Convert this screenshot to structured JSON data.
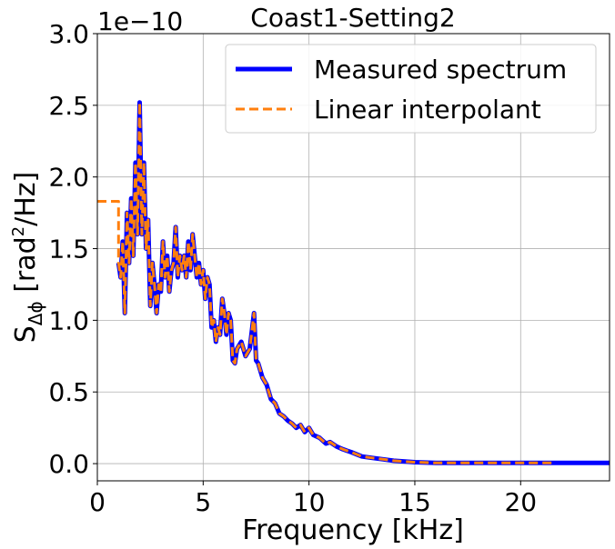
{
  "chart_data": {
    "type": "line",
    "title": "Coast1-Setting2",
    "xlabel": "Frequency [kHz]",
    "ylabel": {
      "base": "S",
      "subscript": "Δϕ",
      "mid": " [rad",
      "superscript": "2",
      "end": "/Hz]"
    },
    "offset_text": "1e−10",
    "xlim": [
      0,
      24.2
    ],
    "ylim": [
      -0.12,
      3.0
    ],
    "x_ticks": [
      0,
      5,
      10,
      15,
      20
    ],
    "x_tick_labels": [
      "0",
      "5",
      "10",
      "15",
      "20"
    ],
    "y_ticks": [
      0.0,
      0.5,
      1.0,
      1.5,
      2.0,
      2.5,
      3.0
    ],
    "y_tick_labels": [
      "0.0",
      "0.5",
      "1.0",
      "1.5",
      "2.0",
      "2.5",
      "3.0"
    ],
    "y_unit_multiplier": 1e-10,
    "grid": true,
    "legend_position": "upper-right",
    "series": [
      {
        "name": "Measured spectrum",
        "color": "#0000ff",
        "style": "solid",
        "x": [
          1.0,
          1.1,
          1.2,
          1.3,
          1.4,
          1.5,
          1.6,
          1.7,
          1.8,
          1.9,
          2.0,
          2.1,
          2.2,
          2.3,
          2.4,
          2.5,
          2.6,
          2.7,
          2.8,
          2.9,
          3.0,
          3.1,
          3.2,
          3.3,
          3.4,
          3.5,
          3.6,
          3.7,
          3.8,
          3.9,
          4.0,
          4.1,
          4.2,
          4.3,
          4.4,
          4.5,
          4.6,
          4.7,
          4.8,
          4.9,
          5.0,
          5.1,
          5.2,
          5.3,
          5.4,
          5.5,
          5.6,
          5.7,
          5.8,
          5.9,
          6.0,
          6.1,
          6.2,
          6.3,
          6.4,
          6.5,
          6.6,
          6.8,
          7.0,
          7.2,
          7.4,
          7.5,
          7.6,
          7.8,
          8.0,
          8.2,
          8.4,
          8.6,
          8.8,
          9.0,
          9.2,
          9.4,
          9.6,
          9.8,
          10.0,
          10.2,
          10.5,
          10.8,
          11.0,
          11.3,
          11.6,
          12.0,
          12.5,
          13.0,
          13.5,
          14.0,
          15.0,
          16.0,
          18.0,
          20.0,
          22.0,
          24.2
        ],
        "y": [
          1.4,
          1.3,
          1.55,
          1.05,
          1.75,
          1.4,
          1.85,
          1.45,
          2.1,
          1.6,
          2.52,
          1.6,
          2.1,
          1.5,
          1.7,
          1.1,
          1.4,
          1.25,
          1.05,
          1.25,
          1.2,
          1.55,
          1.3,
          1.45,
          1.2,
          1.35,
          1.4,
          1.65,
          1.3,
          1.45,
          1.35,
          1.45,
          1.3,
          1.55,
          1.35,
          1.6,
          1.45,
          1.3,
          1.4,
          1.25,
          1.35,
          1.15,
          1.3,
          1.25,
          0.95,
          1.0,
          0.85,
          0.95,
          0.9,
          1.15,
          1.05,
          0.9,
          1.05,
          1.0,
          0.72,
          0.7,
          0.8,
          0.85,
          0.75,
          0.8,
          1.05,
          0.72,
          0.7,
          0.6,
          0.55,
          0.45,
          0.42,
          0.35,
          0.33,
          0.3,
          0.28,
          0.25,
          0.27,
          0.22,
          0.25,
          0.2,
          0.18,
          0.14,
          0.15,
          0.12,
          0.1,
          0.08,
          0.05,
          0.04,
          0.03,
          0.02,
          0.01,
          0.005,
          0.005,
          0.005,
          0.005,
          0.005
        ]
      },
      {
        "name": "Linear interpolant",
        "color": "#ff7f0e",
        "style": "dashed",
        "x": [
          0.0,
          1.0,
          1.0,
          1.1,
          1.2,
          1.3,
          1.4,
          1.5,
          1.6,
          1.7,
          1.8,
          1.9,
          2.0,
          2.1,
          2.2,
          2.3,
          2.4,
          2.5,
          2.6,
          2.7,
          2.8,
          2.9,
          3.0,
          3.1,
          3.2,
          3.3,
          3.4,
          3.5,
          3.6,
          3.7,
          3.8,
          3.9,
          4.0,
          4.1,
          4.2,
          4.3,
          4.4,
          4.5,
          4.6,
          4.7,
          4.8,
          4.9,
          5.0,
          5.1,
          5.2,
          5.3,
          5.4,
          5.5,
          5.6,
          5.7,
          5.8,
          5.9,
          6.0,
          6.1,
          6.2,
          6.3,
          6.4,
          6.5,
          6.6,
          6.8,
          7.0,
          7.2,
          7.4,
          7.5,
          7.6,
          7.8,
          8.0,
          8.2,
          8.4,
          8.6,
          8.8,
          9.0,
          9.2,
          9.4,
          9.6,
          9.8,
          10.0,
          10.2,
          10.5,
          10.8,
          11.0,
          11.3,
          11.6,
          12.0,
          12.5,
          13.0,
          13.5,
          14.0,
          15.0,
          16.0,
          18.0,
          20.0,
          21.6
        ],
        "y": [
          1.83,
          1.83,
          1.4,
          1.3,
          1.55,
          1.05,
          1.75,
          1.4,
          1.85,
          1.45,
          2.1,
          1.6,
          2.52,
          1.6,
          2.1,
          1.5,
          1.7,
          1.1,
          1.4,
          1.25,
          1.05,
          1.25,
          1.2,
          1.55,
          1.3,
          1.45,
          1.2,
          1.35,
          1.4,
          1.65,
          1.3,
          1.45,
          1.35,
          1.45,
          1.3,
          1.55,
          1.35,
          1.6,
          1.45,
          1.3,
          1.4,
          1.25,
          1.35,
          1.15,
          1.3,
          1.25,
          0.95,
          1.0,
          0.85,
          0.95,
          0.9,
          1.15,
          1.05,
          0.9,
          1.05,
          1.0,
          0.72,
          0.7,
          0.8,
          0.85,
          0.75,
          0.8,
          1.05,
          0.72,
          0.7,
          0.6,
          0.55,
          0.45,
          0.42,
          0.35,
          0.33,
          0.3,
          0.28,
          0.25,
          0.27,
          0.22,
          0.25,
          0.2,
          0.18,
          0.14,
          0.15,
          0.12,
          0.1,
          0.08,
          0.05,
          0.04,
          0.03,
          0.02,
          0.01,
          0.005,
          0.005,
          0.005,
          0.005
        ]
      }
    ]
  }
}
